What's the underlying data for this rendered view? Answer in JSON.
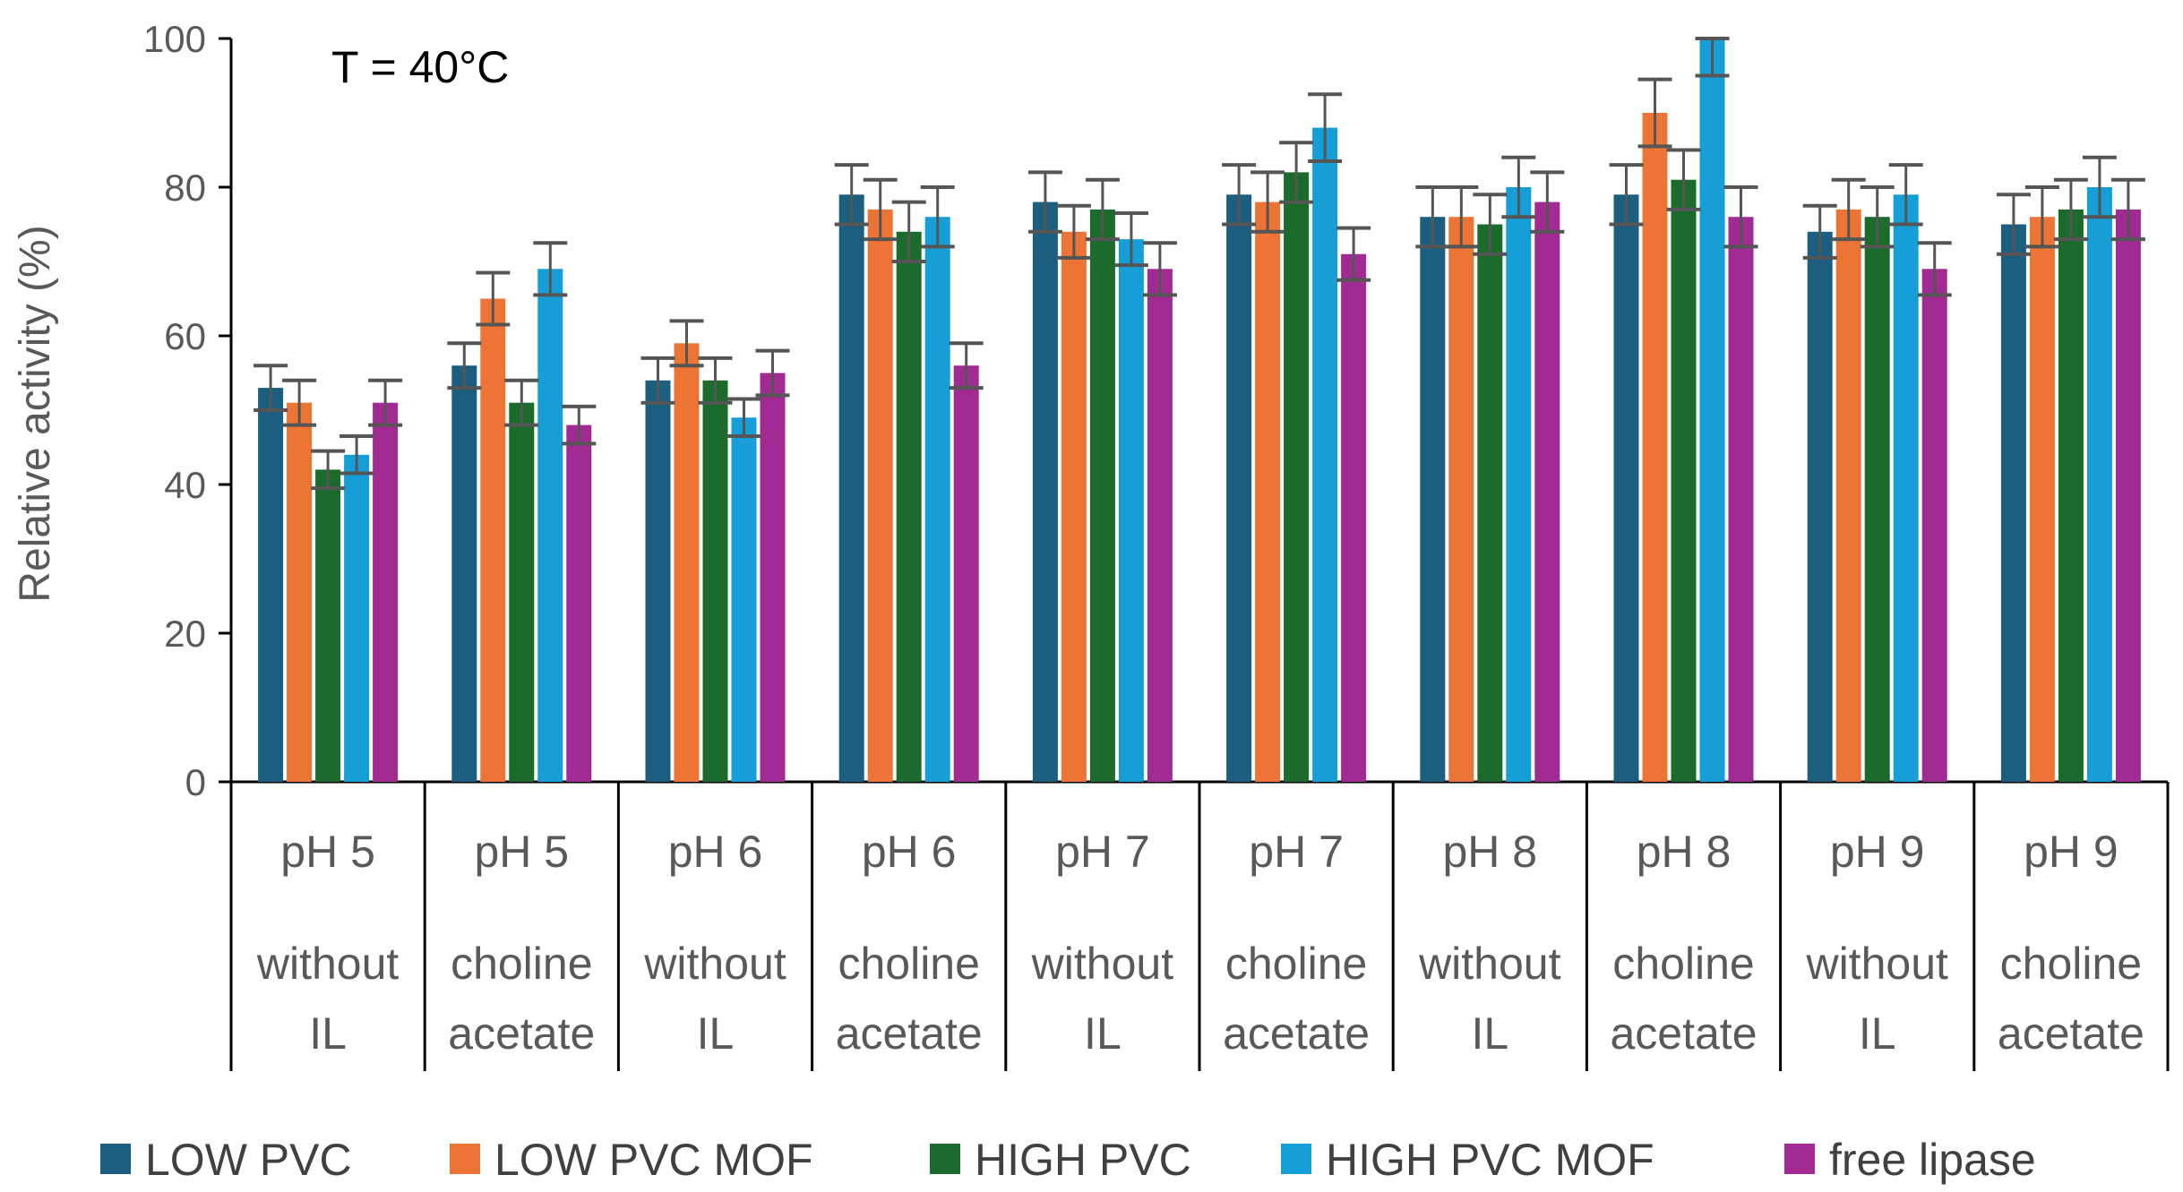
{
  "chart_data": {
    "type": "bar",
    "annotation": "T = 40°C",
    "xlabel": "",
    "ylabel": "Relative activity (%)",
    "ylim": [
      0,
      100
    ],
    "yticks": [
      0,
      20,
      40,
      60,
      80,
      100
    ],
    "grid": false,
    "legend_position": "bottom",
    "categories": [
      {
        "ph": "pH 5",
        "il": [
          "without",
          "IL"
        ]
      },
      {
        "ph": "pH 5",
        "il": [
          "choline",
          "acetate"
        ]
      },
      {
        "ph": "pH 6",
        "il": [
          "without",
          "IL"
        ]
      },
      {
        "ph": "pH 6",
        "il": [
          "choline",
          "acetate"
        ]
      },
      {
        "ph": "pH 7",
        "il": [
          "without",
          "IL"
        ]
      },
      {
        "ph": "pH 7",
        "il": [
          "choline",
          "acetate"
        ]
      },
      {
        "ph": "pH 8",
        "il": [
          "without",
          "IL"
        ]
      },
      {
        "ph": "pH 8",
        "il": [
          "choline",
          "acetate"
        ]
      },
      {
        "ph": "pH 9",
        "il": [
          "without",
          "IL"
        ]
      },
      {
        "ph": "pH 9",
        "il": [
          "choline",
          "acetate"
        ]
      }
    ],
    "series": [
      {
        "name": "LOW PVC",
        "color": "#1b5e80",
        "values": [
          53,
          56,
          54,
          79,
          78,
          79,
          76,
          79,
          74,
          75
        ],
        "errors": [
          3,
          3,
          3,
          4,
          4,
          4,
          4,
          4,
          3.5,
          4
        ]
      },
      {
        "name": "LOW PVC MOF",
        "color": "#ec7535",
        "values": [
          51,
          65,
          59,
          77,
          74,
          78,
          76,
          90,
          77,
          76
        ],
        "errors": [
          3,
          3.5,
          3,
          4,
          3.5,
          4,
          4,
          4.5,
          4,
          4
        ]
      },
      {
        "name": "HIGH PVC",
        "color": "#1a6b2c",
        "values": [
          42,
          51,
          54,
          74,
          77,
          82,
          75,
          81,
          76,
          77
        ],
        "errors": [
          2.5,
          3,
          3,
          4,
          4,
          4,
          4,
          4,
          4,
          4
        ]
      },
      {
        "name": "HIGH PVC MOF",
        "color": "#169ed8",
        "values": [
          44,
          69,
          49,
          76,
          73,
          88,
          80,
          100,
          79,
          80
        ],
        "errors": [
          2.5,
          3.5,
          2.5,
          4,
          3.5,
          4.5,
          4,
          5,
          4,
          4
        ]
      },
      {
        "name": "free lipase",
        "color": "#a12b92",
        "values": [
          51,
          48,
          55,
          56,
          69,
          71,
          78,
          76,
          69,
          77
        ],
        "errors": [
          3,
          2.5,
          3,
          3,
          3.5,
          3.5,
          4,
          4,
          3.5,
          4
        ]
      }
    ]
  }
}
